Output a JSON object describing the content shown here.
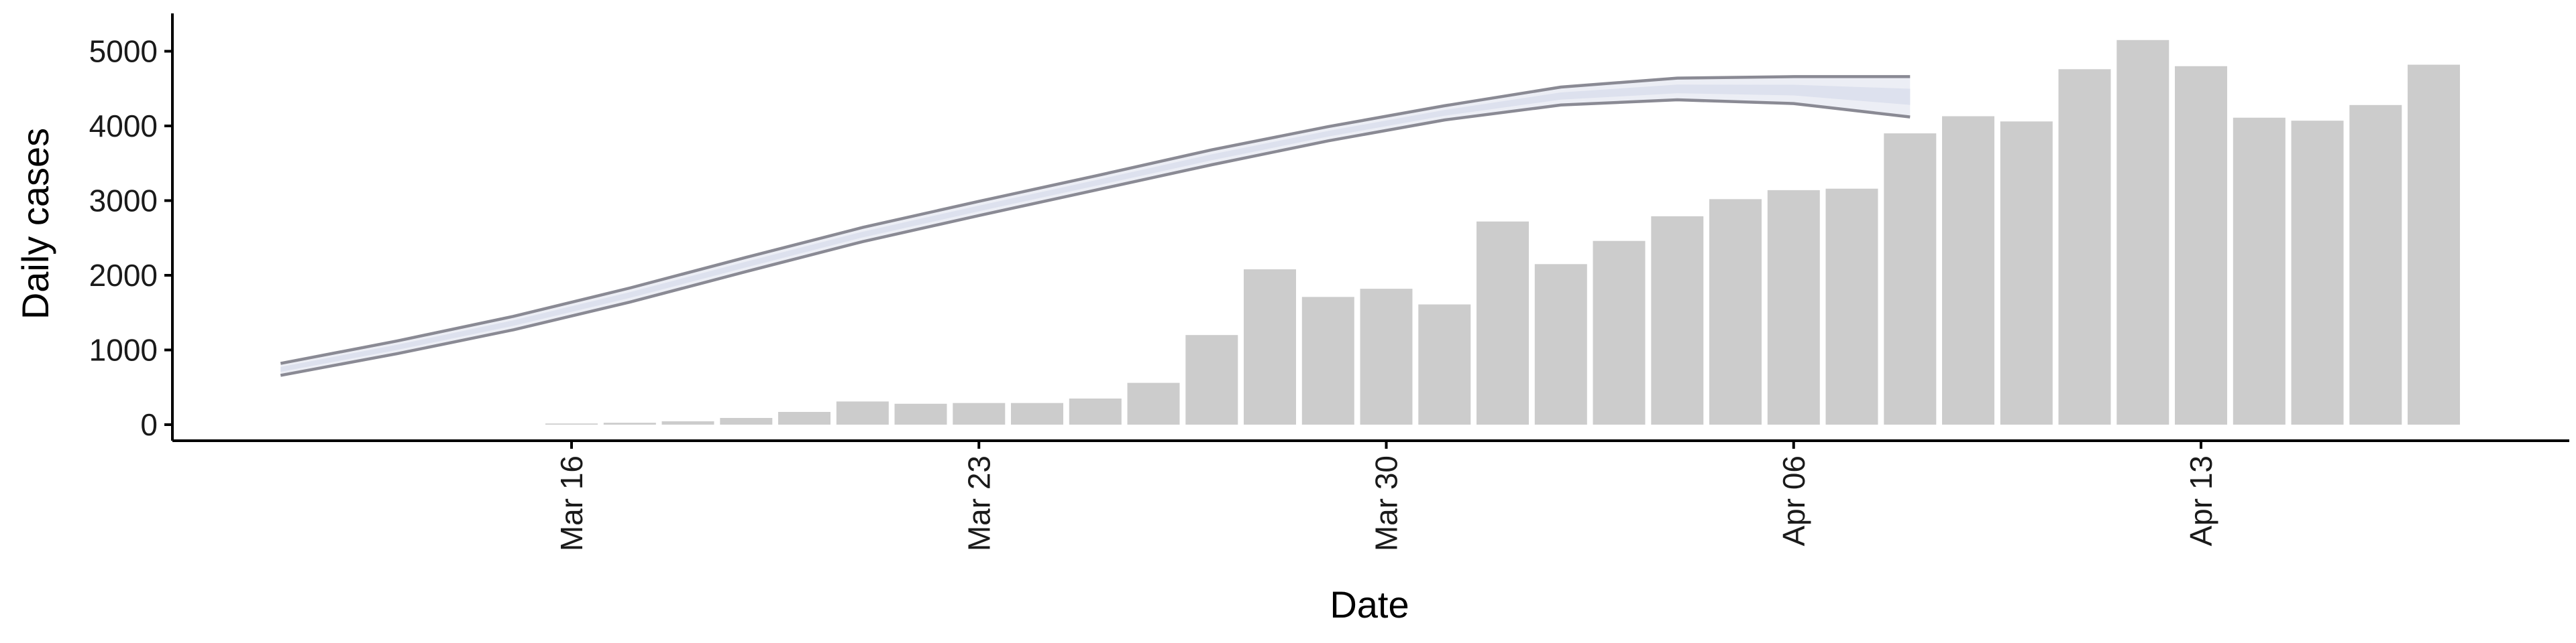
{
  "colors": {
    "bar": "#cccccc",
    "band_inner": "#dde1ee",
    "band_outer": "#eceef5",
    "band_edge": "#8a8a94",
    "axis": "#000000"
  },
  "chart_data": {
    "type": "bar",
    "xlabel": "Date",
    "ylabel": "Daily cases",
    "ylim": [
      -250,
      5400
    ],
    "yticks": [
      0,
      1000,
      2000,
      3000,
      4000,
      5000
    ],
    "xticks": [
      {
        "date": "2020-03-16",
        "label": "Mar 16"
      },
      {
        "date": "2020-03-23",
        "label": "Mar 23"
      },
      {
        "date": "2020-03-30",
        "label": "Mar 30"
      },
      {
        "date": "2020-04-06",
        "label": "Apr 06"
      },
      {
        "date": "2020-04-13",
        "label": "Apr 13"
      }
    ],
    "xlim": [
      "2020-03-09",
      "2020-04-21"
    ],
    "grid": false,
    "legend": "none",
    "bars": [
      {
        "date": "2020-03-16",
        "value": 15
      },
      {
        "date": "2020-03-17",
        "value": 25
      },
      {
        "date": "2020-03-18",
        "value": 45
      },
      {
        "date": "2020-03-19",
        "value": 90
      },
      {
        "date": "2020-03-20",
        "value": 170
      },
      {
        "date": "2020-03-21",
        "value": 310
      },
      {
        "date": "2020-03-22",
        "value": 280
      },
      {
        "date": "2020-03-23",
        "value": 290
      },
      {
        "date": "2020-03-24",
        "value": 290
      },
      {
        "date": "2020-03-25",
        "value": 350
      },
      {
        "date": "2020-03-26",
        "value": 560
      },
      {
        "date": "2020-03-27",
        "value": 1200
      },
      {
        "date": "2020-03-28",
        "value": 2080
      },
      {
        "date": "2020-03-29",
        "value": 1710
      },
      {
        "date": "2020-03-30",
        "value": 1820
      },
      {
        "date": "2020-03-31",
        "value": 1610
      },
      {
        "date": "2020-04-01",
        "value": 2720
      },
      {
        "date": "2020-04-02",
        "value": 2150
      },
      {
        "date": "2020-04-03",
        "value": 2460
      },
      {
        "date": "2020-04-04",
        "value": 2790
      },
      {
        "date": "2020-04-05",
        "value": 3020
      },
      {
        "date": "2020-04-06",
        "value": 3140
      },
      {
        "date": "2020-04-07",
        "value": 3160
      },
      {
        "date": "2020-04-08",
        "value": 3900
      },
      {
        "date": "2020-04-09",
        "value": 4130
      },
      {
        "date": "2020-04-10",
        "value": 4060
      },
      {
        "date": "2020-04-11",
        "value": 4760
      },
      {
        "date": "2020-04-12",
        "value": 5150
      },
      {
        "date": "2020-04-13",
        "value": 4800
      },
      {
        "date": "2020-04-14",
        "value": 4110
      },
      {
        "date": "2020-04-15",
        "value": 4070
      },
      {
        "date": "2020-04-16",
        "value": 4280
      },
      {
        "date": "2020-04-17",
        "value": 4820
      }
    ],
    "band": [
      {
        "date": "2020-03-11",
        "lower": 660,
        "upper": 820
      },
      {
        "date": "2020-03-13",
        "lower": 950,
        "upper": 1120
      },
      {
        "date": "2020-03-15",
        "lower": 1270,
        "upper": 1450
      },
      {
        "date": "2020-03-17",
        "lower": 1640,
        "upper": 1830
      },
      {
        "date": "2020-03-19",
        "lower": 2050,
        "upper": 2240
      },
      {
        "date": "2020-03-21",
        "lower": 2450,
        "upper": 2640
      },
      {
        "date": "2020-03-23",
        "lower": 2800,
        "upper": 2990
      },
      {
        "date": "2020-03-25",
        "lower": 3140,
        "upper": 3330
      },
      {
        "date": "2020-03-27",
        "lower": 3480,
        "upper": 3680
      },
      {
        "date": "2020-03-29",
        "lower": 3800,
        "upper": 3990
      },
      {
        "date": "2020-03-31",
        "lower": 4080,
        "upper": 4270
      },
      {
        "date": "2020-04-02",
        "lower": 4280,
        "upper": 4520
      },
      {
        "date": "2020-04-04",
        "lower": 4350,
        "upper": 4640
      },
      {
        "date": "2020-04-06",
        "lower": 4300,
        "upper": 4660
      },
      {
        "date": "2020-04-08",
        "lower": 4120,
        "upper": 4660
      }
    ]
  }
}
